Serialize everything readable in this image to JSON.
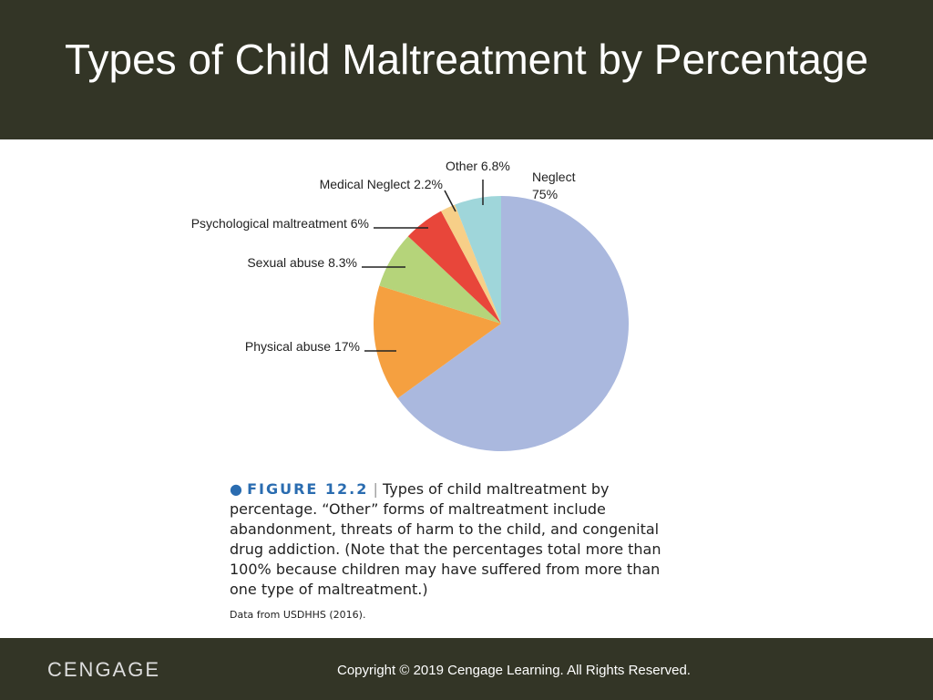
{
  "title": "Types of Child Maltreatment by Percentage",
  "chart_data": {
    "type": "pie",
    "categories": [
      "Neglect",
      "Physical abuse",
      "Sexual abuse",
      "Psychological maltreatment",
      "Medical Neglect",
      "Other"
    ],
    "values": [
      75,
      17,
      8.3,
      6,
      2.2,
      6.8
    ],
    "value_labels": [
      "75%",
      "17%",
      "8.3%",
      "6%",
      "2.2%",
      "6.8%"
    ],
    "colors": [
      "#aab8de",
      "#f5a040",
      "#b5d47a",
      "#e8463a",
      "#f7cf88",
      "#9fd6da"
    ]
  },
  "caption": {
    "figure": "FIGURE 12.2",
    "separator": "|",
    "text": "Types of child maltreatment by percentage. “Other” forms of maltreatment include abandonment, threats of harm to the child, and congenital drug addiction. (Note that the percentages total more than 100% because children may have suffered from more than one type of maltreatment.)",
    "source": "Data from USDHHS (2016)."
  },
  "footer": {
    "logo": "CENGAGE",
    "copyright": "Copyright © 2019 Cengage Learning. All Rights Reserved."
  }
}
